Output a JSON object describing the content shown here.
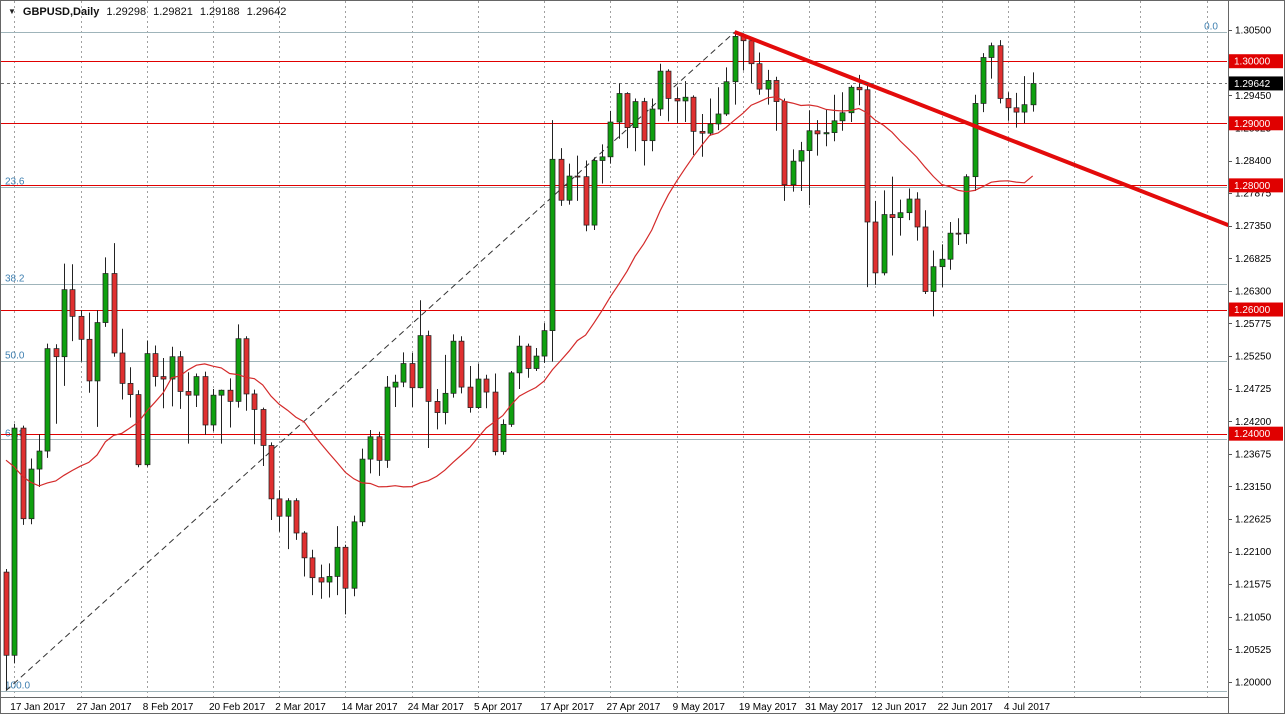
{
  "header": {
    "symbol": "GBPUSD,Daily",
    "open": "1.29298",
    "high": "1.29821",
    "low": "1.29188",
    "close": "1.29642"
  },
  "colors": {
    "bull": "#0fa00f",
    "bear": "#e03030",
    "wick": "#222222",
    "sr_line": "#e00000",
    "sr_badge": "#e00000",
    "current_badge": "#000000",
    "ma": "#d42a2a",
    "trend_bold": "#e30b0b",
    "trend_dashed": "#333333",
    "fib_line": "#9fb4ba",
    "fib_text": "#3e7fb0",
    "grid": "#a0a0a0",
    "axis_text": "#000000",
    "border": "#666666",
    "bg": "#ffffff"
  },
  "chart_data": {
    "type": "candlestick",
    "symbol": "GBPUSD",
    "timeframe": "Daily",
    "grid": "vertical-dashed",
    "legend": "none",
    "y_range": [
      1.19758,
      1.3097
    ],
    "y_axis_labels": [
      "1.30500",
      "1.29975",
      "1.29450",
      "1.28925",
      "1.28400",
      "1.27875",
      "1.27350",
      "1.26825",
      "1.26300",
      "1.25775",
      "1.25250",
      "1.24725",
      "1.24200",
      "1.23675",
      "1.23150",
      "1.22625",
      "1.22100",
      "1.21575",
      "1.21050",
      "1.20525",
      "1.20000"
    ],
    "x_labels": [
      {
        "text": "17 Jan 2017",
        "bar": 1
      },
      {
        "text": "27 Jan 2017",
        "bar": 9
      },
      {
        "text": "8 Feb 2017",
        "bar": 17
      },
      {
        "text": "20 Feb 2017",
        "bar": 25
      },
      {
        "text": "2 Mar 2017",
        "bar": 33
      },
      {
        "text": "14 Mar 2017",
        "bar": 41
      },
      {
        "text": "24 Mar 2017",
        "bar": 49
      },
      {
        "text": "5 Apr 2017",
        "bar": 57
      },
      {
        "text": "17 Apr 2017",
        "bar": 65
      },
      {
        "text": "27 Apr 2017",
        "bar": 73
      },
      {
        "text": "9 May 2017",
        "bar": 81
      },
      {
        "text": "19 May 2017",
        "bar": 89
      },
      {
        "text": "31 May 2017",
        "bar": 97
      },
      {
        "text": "12 Jun 2017",
        "bar": 105
      },
      {
        "text": "22 Jun 2017",
        "bar": 113
      },
      {
        "text": "4 Jul 2017",
        "bar": 121
      }
    ],
    "extra_gridline_bars": [
      129,
      137,
      145
    ],
    "candles": [
      [
        1.2177,
        1.2182,
        1.1986,
        1.2043
      ],
      [
        1.2043,
        1.2416,
        1.203,
        1.2409
      ],
      [
        1.2409,
        1.2413,
        1.2253,
        1.2263
      ],
      [
        1.2263,
        1.236,
        1.2254,
        1.2343
      ],
      [
        1.2343,
        1.2399,
        1.2314,
        1.2372
      ],
      [
        1.2372,
        1.2545,
        1.2361,
        1.2537
      ],
      [
        1.2537,
        1.2544,
        1.2416,
        1.2524
      ],
      [
        1.2524,
        1.2674,
        1.2477,
        1.2632
      ],
      [
        1.2632,
        1.2673,
        1.2549,
        1.2589
      ],
      [
        1.2589,
        1.2599,
        1.2516,
        1.2552
      ],
      [
        1.2552,
        1.2595,
        1.2466,
        1.2485
      ],
      [
        1.2485,
        1.2599,
        1.2411,
        1.2579
      ],
      [
        1.2579,
        1.2684,
        1.2572,
        1.2658
      ],
      [
        1.2658,
        1.2707,
        1.2524,
        1.253
      ],
      [
        1.253,
        1.2569,
        1.2455,
        1.2481
      ],
      [
        1.2481,
        1.2507,
        1.2426,
        1.2463
      ],
      [
        1.2463,
        1.247,
        1.2346,
        1.235
      ],
      [
        1.235,
        1.255,
        1.2347,
        1.2529
      ],
      [
        1.2529,
        1.2542,
        1.2476,
        1.2492
      ],
      [
        1.2492,
        1.2522,
        1.2441,
        1.2488
      ],
      [
        1.2488,
        1.254,
        1.2444,
        1.2524
      ],
      [
        1.2524,
        1.2533,
        1.244,
        1.2468
      ],
      [
        1.2468,
        1.2499,
        1.2384,
        1.2462
      ],
      [
        1.2462,
        1.2497,
        1.2443,
        1.2492
      ],
      [
        1.2492,
        1.25,
        1.2398,
        1.2414
      ],
      [
        1.2414,
        1.2472,
        1.2404,
        1.2462
      ],
      [
        1.2462,
        1.2471,
        1.2384,
        1.247
      ],
      [
        1.247,
        1.2489,
        1.241,
        1.2452
      ],
      [
        1.2452,
        1.2576,
        1.2442,
        1.2553
      ],
      [
        1.2553,
        1.2557,
        1.2437,
        1.2464
      ],
      [
        1.2464,
        1.2471,
        1.2383,
        1.2439
      ],
      [
        1.2439,
        1.2442,
        1.2348,
        1.2381
      ],
      [
        1.2381,
        1.2386,
        1.2261,
        1.2295
      ],
      [
        1.2295,
        1.2309,
        1.2242,
        1.2267
      ],
      [
        1.2267,
        1.2296,
        1.2214,
        1.2292
      ],
      [
        1.2292,
        1.2296,
        1.2229,
        1.224
      ],
      [
        1.224,
        1.2243,
        1.217,
        1.22
      ],
      [
        1.22,
        1.2213,
        1.214,
        1.2168
      ],
      [
        1.2168,
        1.2189,
        1.2134,
        1.2161
      ],
      [
        1.2161,
        1.2191,
        1.2136,
        1.217
      ],
      [
        1.217,
        1.2251,
        1.214,
        1.2217
      ],
      [
        1.2217,
        1.2221,
        1.2109,
        1.2151
      ],
      [
        1.2151,
        1.2268,
        1.2138,
        1.2258
      ],
      [
        1.2258,
        1.2376,
        1.2251,
        1.2359
      ],
      [
        1.2359,
        1.2406,
        1.2336,
        1.2395
      ],
      [
        1.2395,
        1.2403,
        1.2332,
        1.2357
      ],
      [
        1.2357,
        1.2493,
        1.2345,
        1.2475
      ],
      [
        1.2475,
        1.2495,
        1.2443,
        1.2483
      ],
      [
        1.2483,
        1.2531,
        1.2475,
        1.2513
      ],
      [
        1.2513,
        1.253,
        1.2443,
        1.2474
      ],
      [
        1.2474,
        1.2615,
        1.2473,
        1.2558
      ],
      [
        1.2558,
        1.2566,
        1.2377,
        1.2452
      ],
      [
        1.2452,
        1.2472,
        1.2407,
        1.2434
      ],
      [
        1.2434,
        1.2527,
        1.2415,
        1.2465
      ],
      [
        1.2465,
        1.256,
        1.2458,
        1.2549
      ],
      [
        1.2549,
        1.2557,
        1.2465,
        1.2475
      ],
      [
        1.2475,
        1.2509,
        1.2434,
        1.2442
      ],
      [
        1.2442,
        1.2513,
        1.244,
        1.2488
      ],
      [
        1.2488,
        1.2495,
        1.2441,
        1.2467
      ],
      [
        1.2467,
        1.2497,
        1.2365,
        1.2371
      ],
      [
        1.2371,
        1.2423,
        1.2366,
        1.2415
      ],
      [
        1.2415,
        1.2501,
        1.2411,
        1.2498
      ],
      [
        1.2498,
        1.2558,
        1.2472,
        1.2541
      ],
      [
        1.2541,
        1.2545,
        1.249,
        1.2505
      ],
      [
        1.2505,
        1.2538,
        1.2501,
        1.2525
      ],
      [
        1.2525,
        1.2578,
        1.2514,
        1.2566
      ],
      [
        1.2566,
        1.2905,
        1.2516,
        1.2842
      ],
      [
        1.2842,
        1.286,
        1.2767,
        1.2776
      ],
      [
        1.2776,
        1.2835,
        1.2769,
        1.2815
      ],
      [
        1.2815,
        1.2848,
        1.2775,
        1.2814
      ],
      [
        1.2814,
        1.284,
        1.2726,
        1.2736
      ],
      [
        1.2736,
        1.2845,
        1.2728,
        1.284
      ],
      [
        1.284,
        1.2866,
        1.2803,
        1.2846
      ],
      [
        1.2846,
        1.292,
        1.2835,
        1.2902
      ],
      [
        1.2902,
        1.2965,
        1.2875,
        1.2948
      ],
      [
        1.2948,
        1.295,
        1.286,
        1.2893
      ],
      [
        1.2893,
        1.294,
        1.2855,
        1.2935
      ],
      [
        1.2935,
        1.2941,
        1.2832,
        1.2872
      ],
      [
        1.2872,
        1.294,
        1.2855,
        1.2923
      ],
      [
        1.2923,
        1.2996,
        1.2912,
        1.2984
      ],
      [
        1.2984,
        1.2987,
        1.2903,
        1.294
      ],
      [
        1.294,
        1.2958,
        1.29,
        1.2936
      ],
      [
        1.2936,
        1.2968,
        1.2902,
        1.2942
      ],
      [
        1.2942,
        1.2945,
        1.2849,
        1.2887
      ],
      [
        1.2887,
        1.2915,
        1.2846,
        1.2884
      ],
      [
        1.2884,
        1.294,
        1.288,
        1.2899
      ],
      [
        1.2899,
        1.2958,
        1.2889,
        1.2915
      ],
      [
        1.2915,
        1.299,
        1.2912,
        1.2967
      ],
      [
        1.2967,
        1.3047,
        1.293,
        1.304
      ],
      [
        1.304,
        1.3045,
        1.2985,
        1.3033
      ],
      [
        1.3033,
        1.3035,
        1.2965,
        1.2996
      ],
      [
        1.2996,
        1.3014,
        1.2946,
        1.2955
      ],
      [
        1.2955,
        1.2986,
        1.293,
        1.2969
      ],
      [
        1.2969,
        1.2975,
        1.2888,
        1.2935
      ],
      [
        1.2935,
        1.294,
        1.2775,
        1.2801
      ],
      [
        1.2801,
        1.2858,
        1.279,
        1.2839
      ],
      [
        1.2839,
        1.287,
        1.2791,
        1.2856
      ],
      [
        1.2856,
        1.2921,
        1.2768,
        1.2888
      ],
      [
        1.2888,
        1.2905,
        1.2848,
        1.2883
      ],
      [
        1.2883,
        1.2923,
        1.2863,
        1.2885
      ],
      [
        1.2885,
        1.2946,
        1.2871,
        1.2904
      ],
      [
        1.2904,
        1.295,
        1.2888,
        1.2917
      ],
      [
        1.2917,
        1.2961,
        1.2902,
        1.2958
      ],
      [
        1.2958,
        1.2978,
        1.2929,
        1.2954
      ],
      [
        1.2954,
        1.296,
        1.2636,
        1.2741
      ],
      [
        1.2741,
        1.2775,
        1.264,
        1.2659
      ],
      [
        1.2659,
        1.2792,
        1.2655,
        1.2753
      ],
      [
        1.2753,
        1.2814,
        1.2687,
        1.2748
      ],
      [
        1.2748,
        1.2777,
        1.2719,
        1.2756
      ],
      [
        1.2756,
        1.2795,
        1.2744,
        1.2778
      ],
      [
        1.2778,
        1.2789,
        1.2711,
        1.2733
      ],
      [
        1.2733,
        1.276,
        1.2625,
        1.2629
      ],
      [
        1.2629,
        1.2695,
        1.2589,
        1.2669
      ],
      [
        1.2669,
        1.2705,
        1.2636,
        1.2681
      ],
      [
        1.2681,
        1.2741,
        1.2664,
        1.2723
      ],
      [
        1.2723,
        1.2747,
        1.2704,
        1.2722
      ],
      [
        1.2722,
        1.2818,
        1.2706,
        1.2814
      ],
      [
        1.2814,
        1.2946,
        1.2791,
        1.2932
      ],
      [
        1.2932,
        1.3013,
        1.2918,
        1.3006
      ],
      [
        1.3006,
        1.303,
        1.2972,
        1.3025
      ],
      [
        1.3025,
        1.3034,
        1.2932,
        1.294
      ],
      [
        1.294,
        1.295,
        1.2904,
        1.2925
      ],
      [
        1.2925,
        1.2949,
        1.2893,
        1.2918
      ],
      [
        1.2918,
        1.2976,
        1.29,
        1.293
      ],
      [
        1.29298,
        1.29821,
        1.29188,
        1.29642
      ]
    ],
    "moving_average": {
      "period": 20,
      "seed_closes": [
        1.2625,
        1.2572,
        1.253,
        1.2486,
        1.2441,
        1.2462,
        1.2449,
        1.2435,
        1.241,
        1.2366,
        1.234,
        1.2233,
        1.2325,
        1.2412,
        1.2286,
        1.2164,
        1.2177,
        1.2205,
        1.2183
      ]
    },
    "horizontal_levels": [
      {
        "price": 1.3,
        "label": "1.30000"
      },
      {
        "price": 1.29,
        "label": "1.29000"
      },
      {
        "price": 1.28,
        "label": "1.28000"
      },
      {
        "price": 1.26,
        "label": "1.26000"
      },
      {
        "price": 1.24,
        "label": "1.24000"
      }
    ],
    "current_price": {
      "value": 1.29642,
      "label": "1.29642"
    },
    "fibonacci": {
      "high": 1.3047,
      "low": 1.1986,
      "levels": [
        {
          "level": "0.0",
          "price": 1.3047,
          "label_side": "right"
        },
        {
          "level": "23.6",
          "price": 1.27966,
          "label_side": "left"
        },
        {
          "level": "38.2",
          "price": 1.26417,
          "label_side": "left"
        },
        {
          "level": "50.0",
          "price": 1.25165,
          "label_side": "left"
        },
        {
          "level": "61.8",
          "price": 1.23913,
          "label_side": "left"
        },
        {
          "level": "100.0",
          "price": 1.1986,
          "label_side": "left"
        }
      ]
    },
    "trendlines": [
      {
        "name": "uptrend-dashed",
        "style": "dashed",
        "width": 1,
        "x1_bar": 0,
        "price1": 1.1986,
        "x2_bar": 88,
        "price2": 1.3047
      },
      {
        "name": "downtrend-bold",
        "style": "solid",
        "width": 4,
        "x1_bar": 88,
        "price1": 1.3047,
        "x2_bar": 148,
        "price2": 1.2734
      }
    ]
  }
}
